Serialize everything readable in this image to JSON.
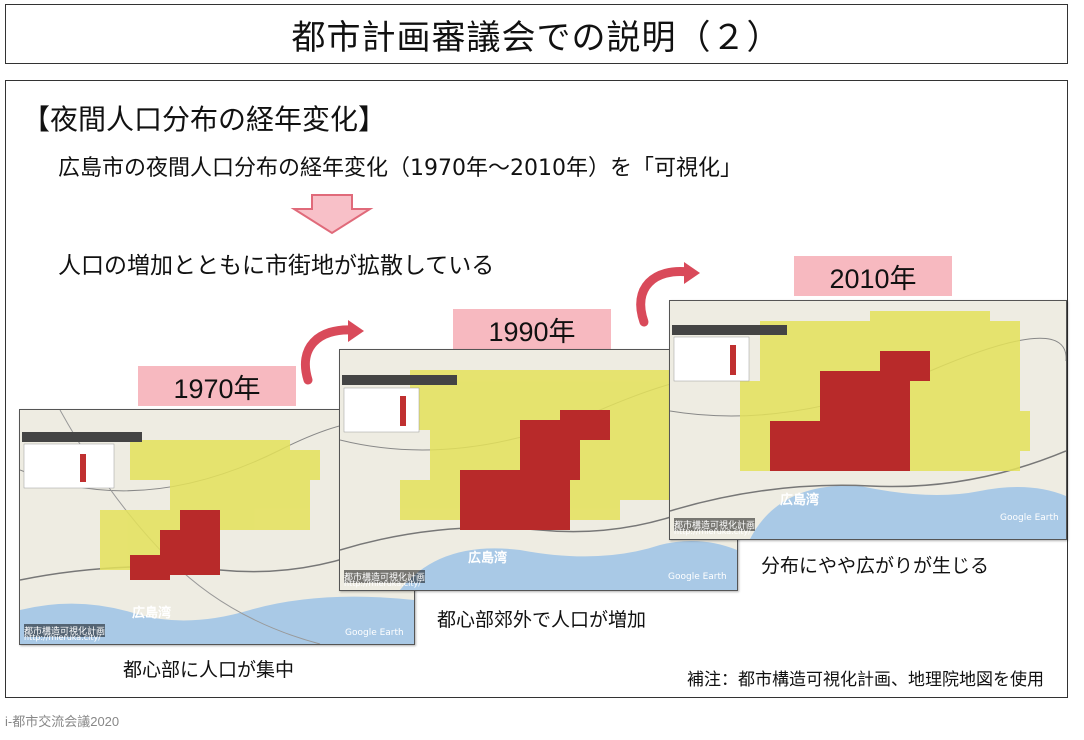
{
  "title": "都市計画審議会での説明（２）",
  "heading": "【夜間人口分布の経年変化】",
  "subtext": "広島市の夜間人口分布の経年変化（1970年～2010年）を「可視化」",
  "result": "人口の増加とともに市街地が拡散している",
  "maps": [
    {
      "year": "1970年",
      "caption": "都心部に人口が集中",
      "bay_label": "広島湾",
      "watermark": "都市構造可視化計画",
      "url": "http://mieruka.city/",
      "google": "Google Earth"
    },
    {
      "year": "1990年",
      "caption": "都心部郊外で人口が増加",
      "bay_label": "広島湾",
      "watermark": "都市構造可視化計画",
      "url": "http://mieruka.city/",
      "google": "Google Earth"
    },
    {
      "year": "2010年",
      "caption": "分布にやや広がりが生じる",
      "bay_label": "広島湾",
      "watermark": "都市構造可視化計画",
      "url": "http://mieruka.city/",
      "google": "Google Earth"
    }
  ],
  "note": "補注：都市構造可視化計画、地理院地図を使用",
  "footer": "i-都市交流会議2020",
  "colors": {
    "year_bg": "#f7b9c0",
    "arrow_fill": "#f8c0c8",
    "arrow_stroke": "#e06a7a",
    "curve_arrow": "#d94a5a"
  }
}
